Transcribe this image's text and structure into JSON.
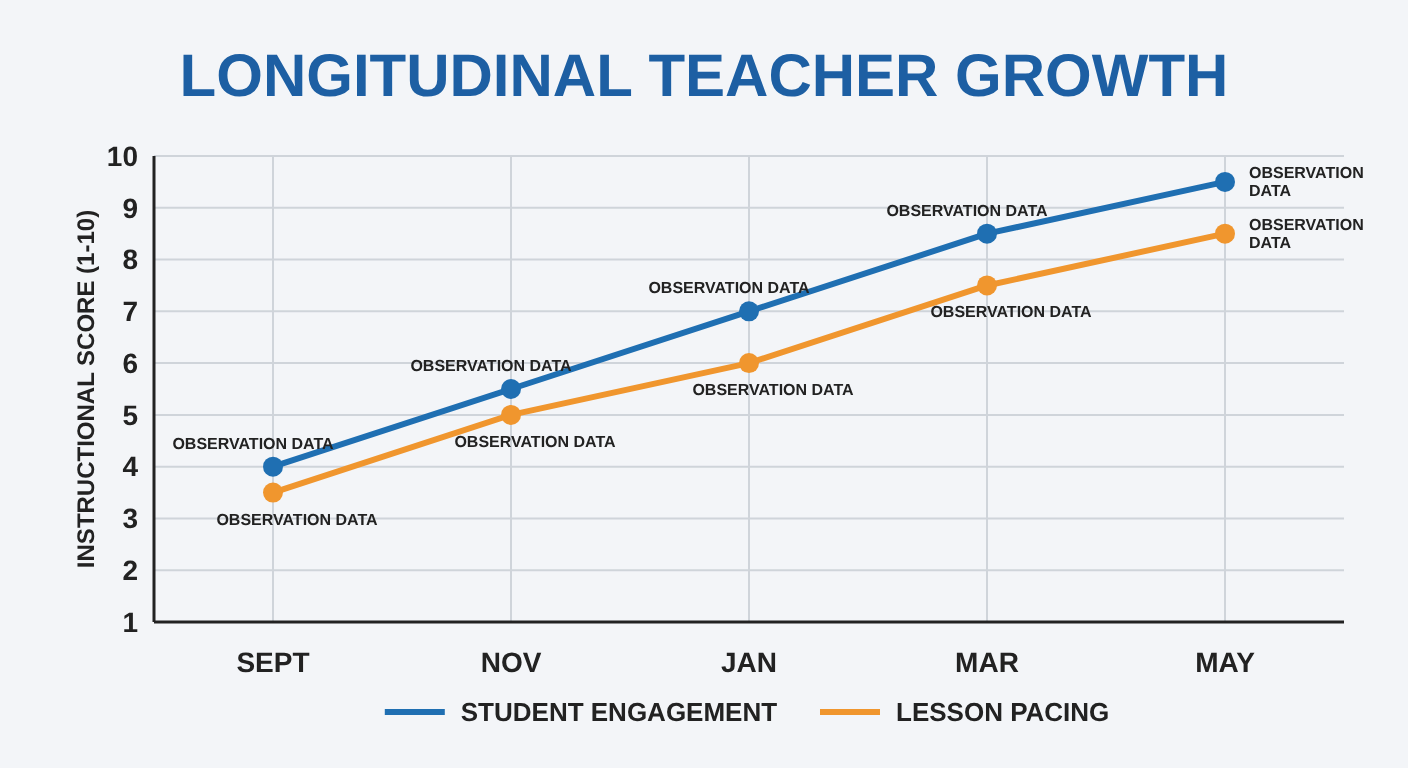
{
  "chart_data": {
    "type": "line",
    "title": "LONGITUDINAL TEACHER GROWTH",
    "ylabel": "INSTRUCTIONAL SCORE (1-10)",
    "categories": [
      "SEPT",
      "NOV",
      "JAN",
      "MAR",
      "MAY"
    ],
    "series": [
      {
        "name": "STUDENT ENGAGEMENT",
        "color": "#1f6fb2",
        "values": [
          4,
          5.5,
          7,
          8.5,
          9.5
        ]
      },
      {
        "name": "LESSON PACING",
        "color": "#f0962e",
        "values": [
          3.5,
          5,
          6,
          7.5,
          8.5
        ]
      }
    ],
    "ylim": [
      1,
      10
    ],
    "yticks": [
      1,
      2,
      3,
      4,
      5,
      6,
      7,
      8,
      9,
      10
    ],
    "grid": true,
    "legend": "bottom",
    "marker": "circle",
    "line_style": "solid",
    "annotations": [
      {
        "text": "OBSERVATION DATA",
        "x": "SEPT",
        "y": 4
      },
      {
        "text": "OBSERVATION DATA",
        "x": "SEPT",
        "y": 3.5
      },
      {
        "text": "OBSERVATION DATA",
        "x": "NOV",
        "y": 5.5
      },
      {
        "text": "OBSERVATION DATA",
        "x": "NOV",
        "y": 5
      },
      {
        "text": "OBSERVATION DATA",
        "x": "JAN",
        "y": 7
      },
      {
        "text": "OBSERVATION DATA",
        "x": "JAN",
        "y": 6
      },
      {
        "text": "OBSERVATION DATA",
        "x": "MAR",
        "y": 8.5
      },
      {
        "text": "OBSERVATION DATA",
        "x": "MAR",
        "y": 7.5
      },
      {
        "text": "OBSERVATION DATA",
        "x": "MAY",
        "y": 9.5
      },
      {
        "text": "OBSERVATION DATA",
        "x": "MAY",
        "y": 8.5
      }
    ]
  }
}
